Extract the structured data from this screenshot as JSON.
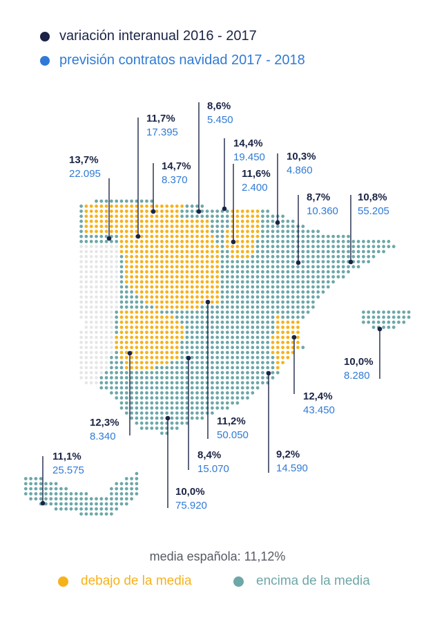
{
  "legend": {
    "items": [
      {
        "label": "variación interanual 2016 - 2017",
        "color": "#1b2446"
      },
      {
        "label": "previsión contratos navidad 2017 - 2018",
        "color": "#2f7ad6"
      }
    ]
  },
  "colors": {
    "below": "#f6b21b",
    "above": "#6ea7a8",
    "none": "#e6e6e6",
    "marker": "#1b2446",
    "variation": "#1b2446",
    "forecast": "#2f7ad6"
  },
  "regions": [
    {
      "variation": "13,7%",
      "forecast": "22.095",
      "group": "below"
    },
    {
      "variation": "11,7%",
      "forecast": "17.395",
      "group": "below"
    },
    {
      "variation": "14,7%",
      "forecast": "8.370",
      "group": "below"
    },
    {
      "variation": "8,6%",
      "forecast": "5.450",
      "group": "above"
    },
    {
      "variation": "14,4%",
      "forecast": "19.450",
      "group": "below"
    },
    {
      "variation": "11,6%",
      "forecast": "2.400",
      "group": "below"
    },
    {
      "variation": "10,3%",
      "forecast": "4.860",
      "group": "above"
    },
    {
      "variation": "8,7%",
      "forecast": "10.360",
      "group": "above"
    },
    {
      "variation": "10,8%",
      "forecast": "55.205",
      "group": "above"
    },
    {
      "variation": "10,0%",
      "forecast": "8.280",
      "group": "above"
    },
    {
      "variation": "12,4%",
      "forecast": "43.450",
      "group": "below"
    },
    {
      "variation": "11,2%",
      "forecast": "50.050",
      "group": "above"
    },
    {
      "variation": "12,3%",
      "forecast": "8.340",
      "group": "below"
    },
    {
      "variation": "9,2%",
      "forecast": "14.590",
      "group": "above"
    },
    {
      "variation": "8,4%",
      "forecast": "15.070",
      "group": "above"
    },
    {
      "variation": "11,1%",
      "forecast": "25.575",
      "group": "above"
    },
    {
      "variation": "10,0%",
      "forecast": "75.920",
      "group": "above"
    }
  ],
  "footer": {
    "average": "media española: 11,12%",
    "below_label": "debajo de la media",
    "above_label": "encima de la media"
  }
}
